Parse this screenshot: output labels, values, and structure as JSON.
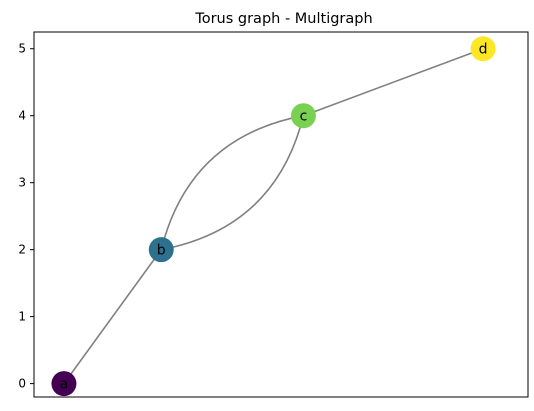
{
  "chart_data": {
    "type": "scatter",
    "title": "Torus graph - Multigraph",
    "xlabel": "",
    "ylabel": "",
    "ylim": [
      -0.2,
      5.25
    ],
    "xlim": [
      -0.2,
      3.1
    ],
    "y_ticks": [
      0,
      1,
      2,
      3,
      4,
      5
    ],
    "x_ticks_shown": false,
    "grid": false,
    "nodes": [
      {
        "id": "a",
        "x": 0,
        "y": 0,
        "color": "#440154"
      },
      {
        "id": "b",
        "x": 0.65,
        "y": 2,
        "color": "#2c728e"
      },
      {
        "id": "c",
        "x": 1.6,
        "y": 4,
        "color": "#7ad151"
      },
      {
        "id": "d",
        "x": 2.8,
        "y": 5,
        "color": "#fde725"
      }
    ],
    "edges": [
      {
        "source": "a",
        "target": "b",
        "curvature": 0
      },
      {
        "source": "b",
        "target": "c",
        "curvature": -0.2
      },
      {
        "source": "b",
        "target": "c",
        "curvature": 0.2
      },
      {
        "source": "c",
        "target": "d",
        "curvature": 0
      }
    ],
    "edge_color": "#808080"
  }
}
